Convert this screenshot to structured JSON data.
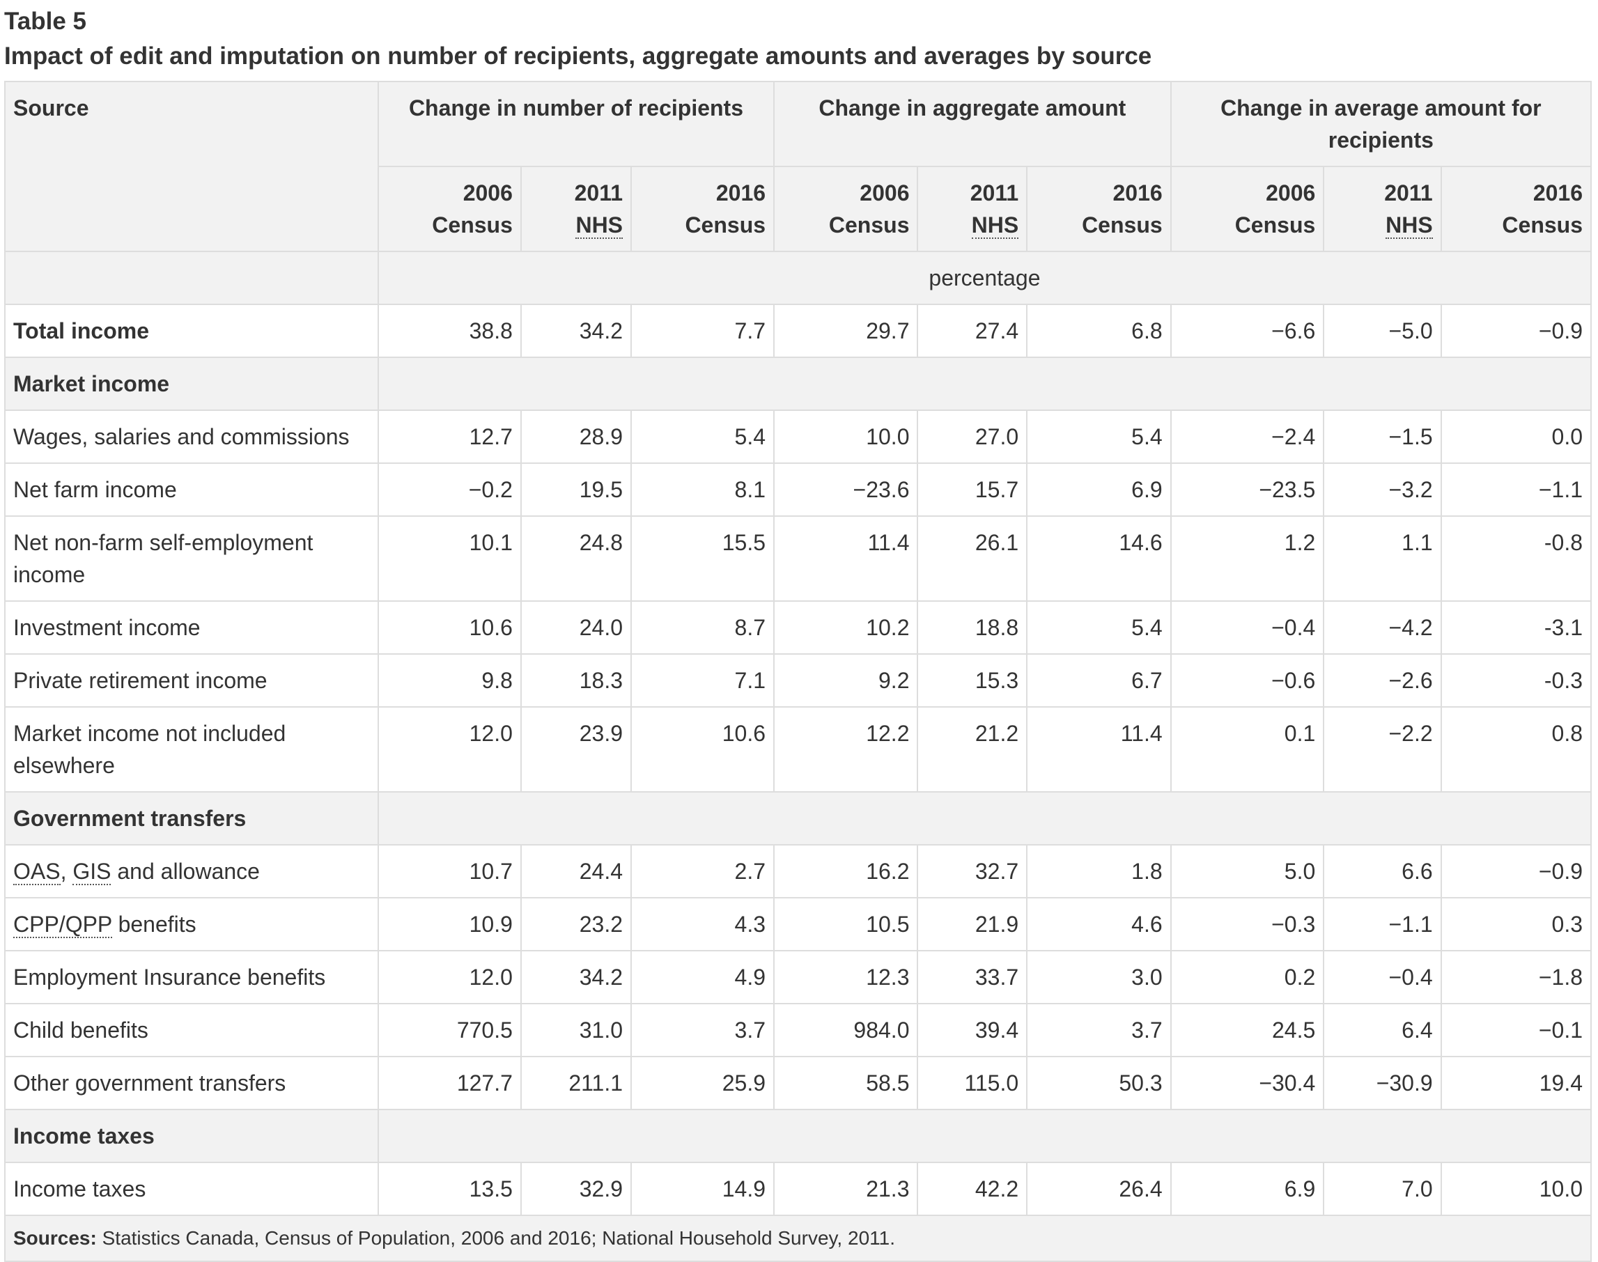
{
  "table_number": "Table 5",
  "title": "Impact of edit and imputation on number of recipients, aggregate amounts and averages by source",
  "header": {
    "source": "Source",
    "groups": [
      "Change in number of recipients",
      "Change in aggregate amount",
      "Change in average amount for recipients"
    ],
    "years": [
      {
        "year": "2006",
        "label": "Census"
      },
      {
        "year": "2011",
        "label": "NHS"
      },
      {
        "year": "2016",
        "label": "Census"
      },
      {
        "year": "2006",
        "label": "Census"
      },
      {
        "year": "2011",
        "label": "NHS"
      },
      {
        "year": "2016",
        "label": "Census"
      },
      {
        "year": "2006",
        "label": "Census"
      },
      {
        "year": "2011",
        "label": "NHS"
      },
      {
        "year": "2016",
        "label": "Census"
      }
    ],
    "unit": "percentage"
  },
  "rows": {
    "total_income": {
      "label": "Total income",
      "values": [
        "38.8",
        "34.2",
        "7.7",
        "29.7",
        "27.4",
        "6.8",
        "−6.6",
        "−5.0",
        "−0.9"
      ]
    },
    "market_income_heading": "Market income",
    "wages": {
      "label": "Wages, salaries and commissions",
      "values": [
        "12.7",
        "28.9",
        "5.4",
        "10.0",
        "27.0",
        "5.4",
        "−2.4",
        "−1.5",
        "0.0"
      ]
    },
    "net_farm": {
      "label": "Net farm income",
      "values": [
        "−0.2",
        "19.5",
        "8.1",
        "−23.6",
        "15.7",
        "6.9",
        "−23.5",
        "−3.2",
        "−1.1"
      ]
    },
    "non_farm": {
      "label": "Net non-farm self-employment income",
      "values": [
        "10.1",
        "24.8",
        "15.5",
        "11.4",
        "26.1",
        "14.6",
        "1.2",
        "1.1",
        "-0.8"
      ]
    },
    "investment": {
      "label": "Investment income",
      "values": [
        "10.6",
        "24.0",
        "8.7",
        "10.2",
        "18.8",
        "5.4",
        "−0.4",
        "−4.2",
        "-3.1"
      ]
    },
    "private_retirement": {
      "label": "Private retirement income",
      "values": [
        "9.8",
        "18.3",
        "7.1",
        "9.2",
        "15.3",
        "6.7",
        "−0.6",
        "−2.6",
        "-0.3"
      ]
    },
    "market_other": {
      "label": "Market income not included elsewhere",
      "values": [
        "12.0",
        "23.9",
        "10.6",
        "12.2",
        "21.2",
        "11.4",
        "0.1",
        "−2.2",
        "0.8"
      ]
    },
    "government_transfers_heading": "Government transfers",
    "oas": {
      "abbr1": "OAS",
      "sep1": ", ",
      "abbr2": "GIS",
      "rest": " and allowance",
      "values": [
        "10.7",
        "24.4",
        "2.7",
        "16.2",
        "32.7",
        "1.8",
        "5.0",
        "6.6",
        "−0.9"
      ]
    },
    "cpp": {
      "abbr": "CPP/QPP",
      "rest": " benefits",
      "values": [
        "10.9",
        "23.2",
        "4.3",
        "10.5",
        "21.9",
        "4.6",
        "−0.3",
        "−1.1",
        "0.3"
      ]
    },
    "ei": {
      "label": "Employment Insurance benefits",
      "values": [
        "12.0",
        "34.2",
        "4.9",
        "12.3",
        "33.7",
        "3.0",
        "0.2",
        "−0.4",
        "−1.8"
      ]
    },
    "child": {
      "label": "Child benefits",
      "values": [
        "770.5",
        "31.0",
        "3.7",
        "984.0",
        "39.4",
        "3.7",
        "24.5",
        "6.4",
        "−0.1"
      ]
    },
    "other_transfers": {
      "label": "Other government transfers",
      "values": [
        "127.7",
        "211.1",
        "25.9",
        "58.5",
        "115.0",
        "50.3",
        "−30.4",
        "−30.9",
        "19.4"
      ]
    },
    "income_taxes_heading": "Income taxes",
    "income_taxes": {
      "label": "Income taxes",
      "values": [
        "13.5",
        "32.9",
        "14.9",
        "21.3",
        "42.2",
        "26.4",
        "6.9",
        "7.0",
        "10.0"
      ]
    }
  },
  "footer": {
    "sources_label": "Sources:",
    "sources_text": " Statistics Canada, Census of Population, 2006 and 2016; National Household Survey, 2011."
  }
}
